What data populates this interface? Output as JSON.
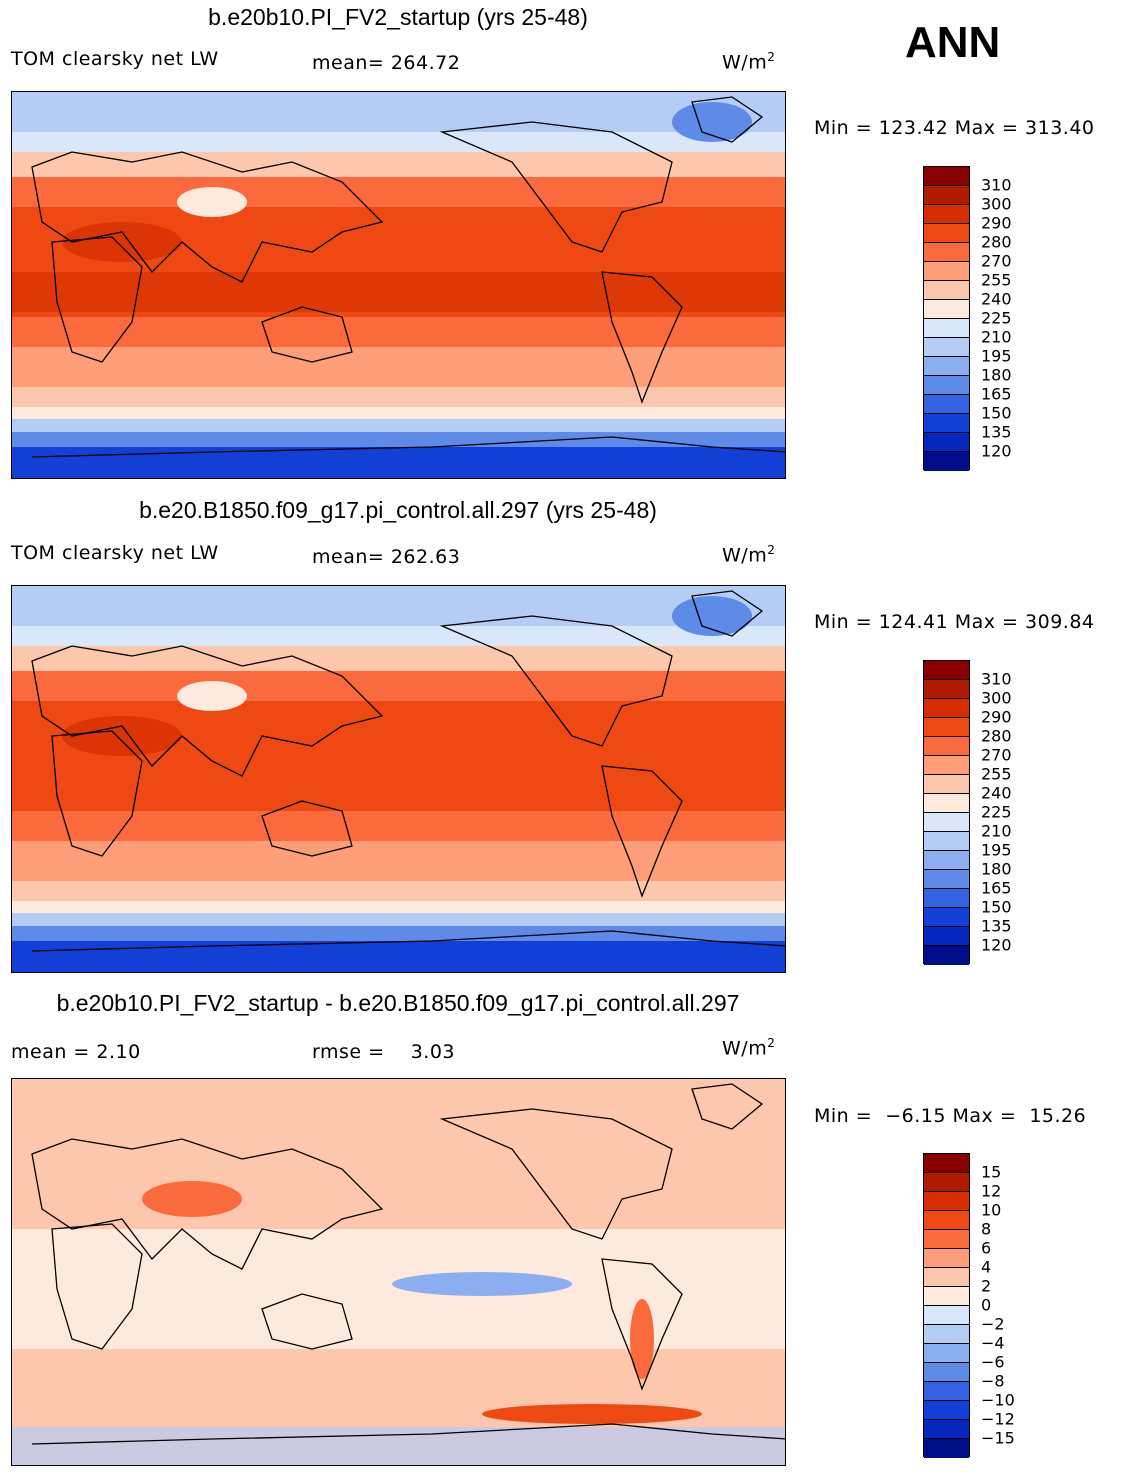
{
  "chart_data": [
    {
      "type": "heatmap",
      "title": "b.e20b10.PI_FV2_startup (yrs 25-48)",
      "variable_label": "TOM clearsky net LW",
      "stat_text": "mean= 264.72",
      "units": "W/m",
      "units_exp": "2",
      "min_max_text": "Min = 123.42 Max = 313.40",
      "levels": [
        "310",
        "300",
        "290",
        "280",
        "270",
        "255",
        "240",
        "225",
        "210",
        "195",
        "180",
        "165",
        "150",
        "135",
        "120"
      ],
      "colors": [
        "#8a0000",
        "#b01a00",
        "#d42e00",
        "#ee4813",
        "#fb6a3d",
        "#fd9e78",
        "#fdc7ad",
        "#feeadd",
        "#d9e7fa",
        "#b4cdf5",
        "#8aaef0",
        "#5e8ae8",
        "#3363e0",
        "#1240d6",
        "#0527bd",
        "#000e8a"
      ]
    },
    {
      "type": "heatmap",
      "title": "b.e20.B1850.f09_g17.pi_control.all.297 (yrs 25-48)",
      "variable_label": "TOM clearsky net LW",
      "stat_text": "mean= 262.63",
      "units": "W/m",
      "units_exp": "2",
      "min_max_text": "Min = 124.41 Max = 309.84",
      "levels": [
        "310",
        "300",
        "290",
        "280",
        "270",
        "255",
        "240",
        "225",
        "210",
        "195",
        "180",
        "165",
        "150",
        "135",
        "120"
      ],
      "colors": [
        "#8a0000",
        "#b01a00",
        "#d42e00",
        "#ee4813",
        "#fb6a3d",
        "#fd9e78",
        "#fdc7ad",
        "#feeadd",
        "#d9e7fa",
        "#b4cdf5",
        "#8aaef0",
        "#5e8ae8",
        "#3363e0",
        "#1240d6",
        "#0527bd",
        "#000e8a"
      ]
    },
    {
      "type": "heatmap",
      "title": "b.e20b10.PI_FV2_startup - b.e20.B1850.f09_g17.pi_control.all.297",
      "variable_label": "mean =    2.10",
      "stat_text": "rmse =    3.03",
      "units": "W/m",
      "units_exp": "2",
      "min_max_text": "Min =  −6.15 Max =  15.26",
      "levels": [
        "15",
        "12",
        "10",
        "8",
        "6",
        "4",
        "2",
        "0",
        "−2",
        "−4",
        "−6",
        "−8",
        "−10",
        "−12",
        "−15"
      ],
      "colors": [
        "#8a0000",
        "#b01a00",
        "#d42e00",
        "#ee4813",
        "#fb6a3d",
        "#fd9e78",
        "#fdc7ad",
        "#feeadd",
        "#d9e7fa",
        "#b4cdf5",
        "#8aaef0",
        "#5e8ae8",
        "#3363e0",
        "#1240d6",
        "#0527bd",
        "#000e8a"
      ]
    }
  ],
  "season_label": "ANN"
}
